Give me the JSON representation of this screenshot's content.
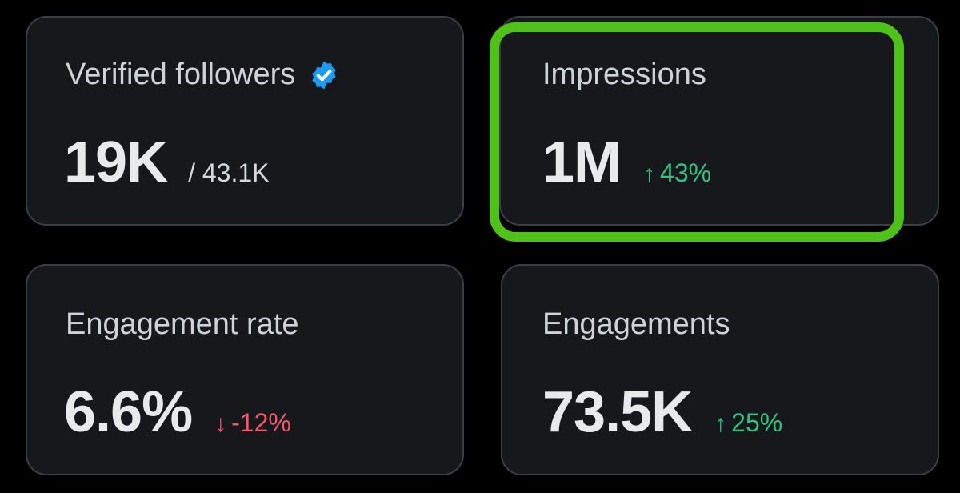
{
  "colors": {
    "background": "#000000",
    "card_background": "#16181c",
    "card_border": "#3b3f46",
    "title_text": "#cfd3d8",
    "value_text": "#e7e9ea",
    "positive": "#2fc283",
    "negative": "#f4566a",
    "verified_badge": "#1d9bf0",
    "highlight": "#4fc21a"
  },
  "cards": {
    "verified_followers": {
      "title": "Verified followers",
      "icon": "verified-badge-icon",
      "value": "19K",
      "secondary": "/ 43.1K"
    },
    "impressions": {
      "title": "Impressions",
      "value": "1M",
      "delta_arrow": "↑",
      "delta": "43%",
      "trend": "up",
      "highlighted": true
    },
    "engagement_rate": {
      "title": "Engagement rate",
      "value": "6.6%",
      "delta_arrow": "↓",
      "delta": "-12%",
      "trend": "down"
    },
    "engagements": {
      "title": "Engagements",
      "value": "73.5K",
      "delta_arrow": "↑",
      "delta": "25%",
      "trend": "up"
    }
  }
}
